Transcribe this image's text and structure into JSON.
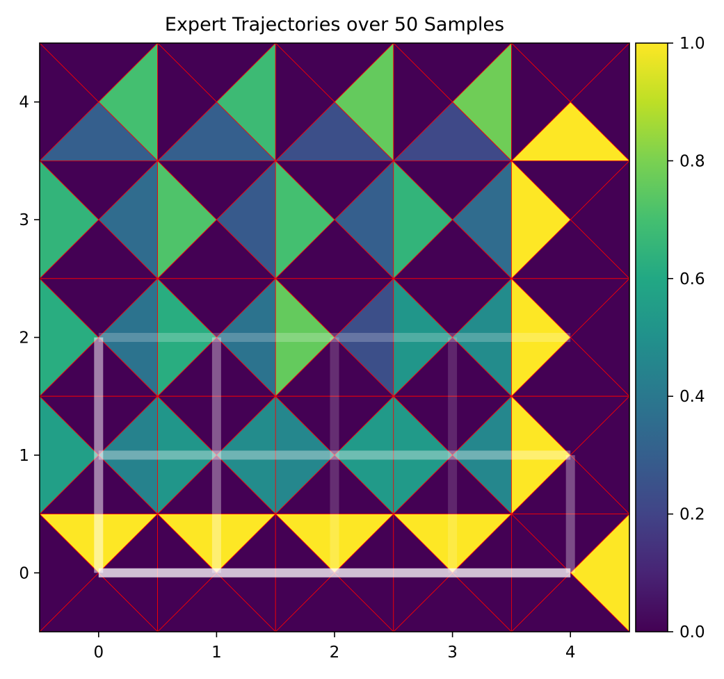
{
  "chart_data": {
    "type": "heatmap",
    "title": "Expert Trajectories over 50 Samples",
    "xlabel": "",
    "ylabel": "",
    "x_ticks": [
      "0",
      "1",
      "2",
      "3",
      "4"
    ],
    "y_ticks": [
      "0",
      "1",
      "2",
      "3",
      "4"
    ],
    "xlim": [
      -0.5,
      4.5
    ],
    "ylim": [
      -0.5,
      4.5
    ],
    "colormap": "viridis",
    "colorbar": {
      "range": [
        0,
        1
      ],
      "ticks": [
        "0.0",
        "0.2",
        "0.4",
        "0.6",
        "0.8",
        "1.0"
      ]
    },
    "cell_subdivision": "each grid cell split into 4 triangles (up, right, down, left) by its diagonals",
    "edge_color": "#ff0000",
    "cells": [
      {
        "x": 0,
        "y": 4,
        "up": 0.0,
        "right": 0.7,
        "down": 0.3,
        "left": 0.0
      },
      {
        "x": 1,
        "y": 4,
        "up": 0.0,
        "right": 0.68,
        "down": 0.3,
        "left": 0.0
      },
      {
        "x": 2,
        "y": 4,
        "up": 0.0,
        "right": 0.76,
        "down": 0.24,
        "left": 0.0
      },
      {
        "x": 3,
        "y": 4,
        "up": 0.0,
        "right": 0.78,
        "down": 0.22,
        "left": 0.0
      },
      {
        "x": 4,
        "y": 4,
        "up": 0.0,
        "right": 0.0,
        "down": 1.0,
        "left": 0.0
      },
      {
        "x": 0,
        "y": 3,
        "up": 0.0,
        "right": 0.35,
        "down": 0.0,
        "left": 0.65
      },
      {
        "x": 1,
        "y": 3,
        "up": 0.0,
        "right": 0.28,
        "down": 0.0,
        "left": 0.72
      },
      {
        "x": 2,
        "y": 3,
        "up": 0.0,
        "right": 0.3,
        "down": 0.0,
        "left": 0.7
      },
      {
        "x": 3,
        "y": 3,
        "up": 0.0,
        "right": 0.35,
        "down": 0.0,
        "left": 0.65
      },
      {
        "x": 4,
        "y": 3,
        "up": 0.0,
        "right": 0.0,
        "down": 0.0,
        "left": 1.0
      },
      {
        "x": 0,
        "y": 2,
        "up": 0.0,
        "right": 0.38,
        "down": 0.0,
        "left": 0.62
      },
      {
        "x": 1,
        "y": 2,
        "up": 0.0,
        "right": 0.38,
        "down": 0.0,
        "left": 0.62
      },
      {
        "x": 2,
        "y": 2,
        "up": 0.0,
        "right": 0.24,
        "down": 0.0,
        "left": 0.76
      },
      {
        "x": 3,
        "y": 2,
        "up": 0.0,
        "right": 0.48,
        "down": 0.0,
        "left": 0.52
      },
      {
        "x": 4,
        "y": 2,
        "up": 0.0,
        "right": 0.0,
        "down": 0.0,
        "left": 1.0
      },
      {
        "x": 0,
        "y": 1,
        "up": 0.0,
        "right": 0.44,
        "down": 0.0,
        "left": 0.56
      },
      {
        "x": 1,
        "y": 1,
        "up": 0.0,
        "right": 0.48,
        "down": 0.0,
        "left": 0.52
      },
      {
        "x": 2,
        "y": 1,
        "up": 0.0,
        "right": 0.54,
        "down": 0.0,
        "left": 0.46
      },
      {
        "x": 3,
        "y": 1,
        "up": 0.0,
        "right": 0.46,
        "down": 0.0,
        "left": 0.54
      },
      {
        "x": 4,
        "y": 1,
        "up": 0.0,
        "right": 0.0,
        "down": 0.0,
        "left": 1.0
      },
      {
        "x": 0,
        "y": 0,
        "up": 1.0,
        "right": 0.0,
        "down": 0.0,
        "left": 0.0
      },
      {
        "x": 1,
        "y": 0,
        "up": 1.0,
        "right": 0.0,
        "down": 0.0,
        "left": 0.0
      },
      {
        "x": 2,
        "y": 0,
        "up": 1.0,
        "right": 0.0,
        "down": 0.0,
        "left": 0.0
      },
      {
        "x": 3,
        "y": 0,
        "up": 1.0,
        "right": 0.0,
        "down": 0.0,
        "left": 0.0
      },
      {
        "x": 4,
        "y": 0,
        "up": 0.0,
        "right": 1.0,
        "down": 0.0,
        "left": 0.0
      }
    ],
    "trajectories": [
      {
        "points": [
          [
            0,
            0
          ],
          [
            4,
            0
          ]
        ],
        "alpha": 0.75
      },
      {
        "points": [
          [
            0,
            1
          ],
          [
            4,
            1
          ]
        ],
        "alpha": 0.35
      },
      {
        "points": [
          [
            0,
            2
          ],
          [
            4,
            2
          ]
        ],
        "alpha": 0.22
      },
      {
        "points": [
          [
            0,
            0
          ],
          [
            0,
            2
          ]
        ],
        "alpha": 0.5
      },
      {
        "points": [
          [
            1,
            0
          ],
          [
            1,
            2
          ]
        ],
        "alpha": 0.35
      },
      {
        "points": [
          [
            2,
            0
          ],
          [
            2,
            2
          ]
        ],
        "alpha": 0.18
      },
      {
        "points": [
          [
            3,
            0
          ],
          [
            3,
            2
          ]
        ],
        "alpha": 0.15
      },
      {
        "points": [
          [
            4,
            0
          ],
          [
            4,
            1
          ]
        ],
        "alpha": 0.3
      }
    ]
  }
}
